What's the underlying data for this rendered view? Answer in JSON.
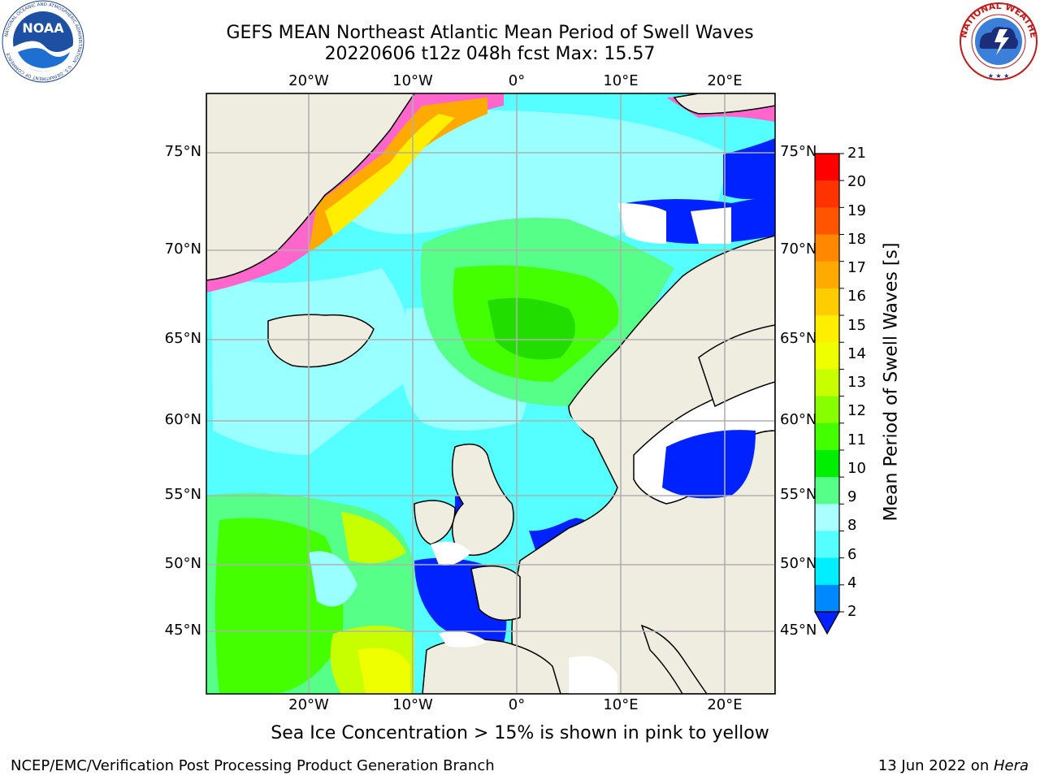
{
  "title_line1": "GEFS MEAN Northeast Atlantic Mean Period of Swell Waves",
  "title_line2": "20220606 t12z 048h fcst   Max: 15.57",
  "lon_labels": [
    "20°W",
    "10°W",
    "0°",
    "10°E",
    "20°E"
  ],
  "lat_labels": [
    "75°N",
    "70°N",
    "65°N",
    "60°N",
    "55°N",
    "50°N",
    "45°N"
  ],
  "colorbar": {
    "title": "Mean Period of Swell Waves [s]",
    "ticks": [
      "21",
      "20",
      "19",
      "18",
      "17",
      "16",
      "15",
      "14",
      "13",
      "12",
      "11",
      "10",
      "9",
      "8",
      "6",
      "4",
      "2"
    ],
    "colors": [
      "#ff0000",
      "#ff3300",
      "#ff5500",
      "#ff8800",
      "#ffaa00",
      "#ffcc00",
      "#ffee00",
      "#f0ff00",
      "#c8ff00",
      "#88ff00",
      "#44ff00",
      "#00ee00",
      "#55ff88",
      "#aaffff",
      "#55ffff",
      "#00eeff",
      "#0088ff",
      "#0022ff"
    ]
  },
  "caption": "Sea Ice Concentration > 15% is shown in pink to yellow",
  "footer_left": "NCEP/EMC/Verification Post Processing Product Generation Branch",
  "footer_date": "13 Jun 2022 on ",
  "footer_host": "Hera",
  "logos": {
    "noaa": "NOAA",
    "noaa_ring": "NATIONAL OCEANIC AND ATMOSPHERIC ADMINISTRATION · U.S. DEPARTMENT OF COMMERCE",
    "nws_ring": "NATIONAL WEATHER SERVICE"
  }
}
